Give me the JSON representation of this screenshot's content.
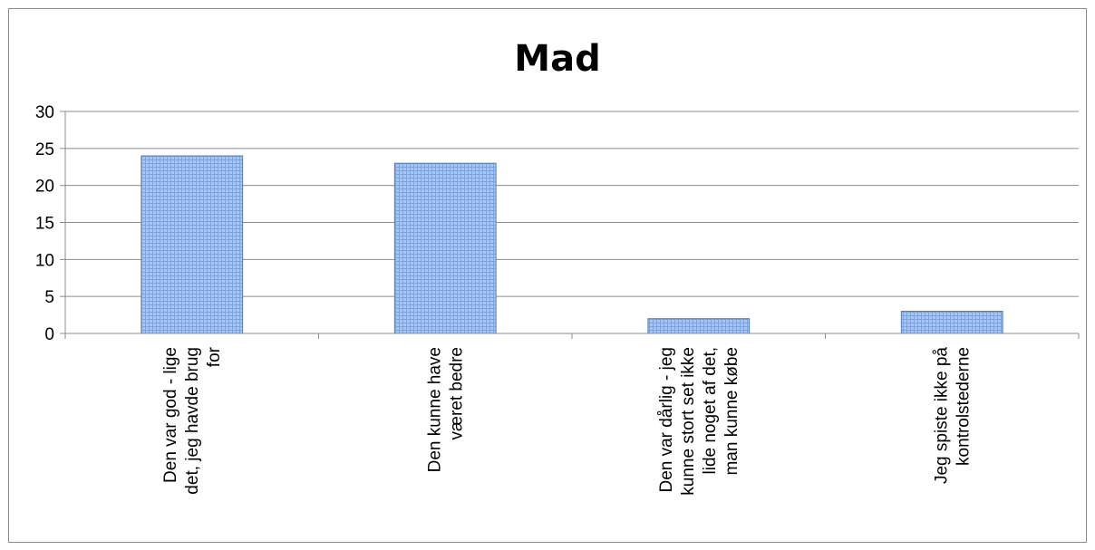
{
  "chart_data": {
    "type": "bar",
    "title": "Mad",
    "xlabel": "",
    "ylabel": "",
    "ylim": [
      0,
      30
    ],
    "yticks": [
      "0",
      "5",
      "10",
      "15",
      "20",
      "25",
      "30"
    ],
    "grid": true,
    "legend": "none",
    "bar_color": "#4f81bd",
    "bar_fill": "#95b3e8",
    "categories": [
      "Den var god - lige det, jeg havde brug for",
      "Den kunne have været bedre",
      "Den var dårlig - jeg kunne stort set ikke lide noget af det, man kunne købe",
      "Jeg spiste ikke på kontrolstederne"
    ],
    "category_lines": [
      [
        "Den var god - lige",
        "det, jeg havde brug",
        "for"
      ],
      [
        "Den kunne have",
        "været bedre"
      ],
      [
        "Den var dårlig - jeg",
        "kunne stort set ikke",
        "lide noget af det,",
        "man kunne købe"
      ],
      [
        "Jeg spiste ikke på",
        "kontrolstederne"
      ]
    ],
    "values": [
      24,
      23,
      2,
      3
    ]
  }
}
